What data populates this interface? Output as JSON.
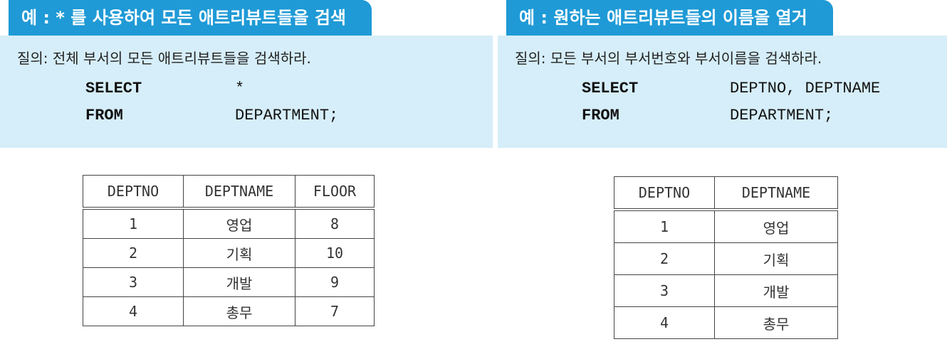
{
  "left": {
    "title": "예 : * 를 사용하여 모든 애트리뷰트들을 검색",
    "question": "질의: 전체 부서의 모든 애트리뷰트들을 검색하라.",
    "sql": [
      {
        "keyword": "SELECT",
        "expr": "*"
      },
      {
        "keyword": "FROM",
        "expr": "DEPARTMENT;"
      }
    ],
    "table": {
      "headers": [
        "DEPTNO",
        "DEPTNAME",
        "FLOOR"
      ],
      "rows": [
        [
          "1",
          "영업",
          "8"
        ],
        [
          "2",
          "기획",
          "10"
        ],
        [
          "3",
          "개발",
          "9"
        ],
        [
          "4",
          "총무",
          "7"
        ]
      ]
    }
  },
  "right": {
    "title": "예 : 원하는 애트리뷰트들의 이름을 열거",
    "question": "질의: 모든 부서의 부서번호와 부서이름을 검색하라.",
    "sql": [
      {
        "keyword": "SELECT",
        "expr": "DEPTNO, DEPTNAME"
      },
      {
        "keyword": "FROM",
        "expr": "DEPARTMENT;"
      }
    ],
    "table": {
      "headers": [
        "DEPTNO",
        "DEPTNAME"
      ],
      "rows": [
        [
          "1",
          "영업"
        ],
        [
          "2",
          "기획"
        ],
        [
          "3",
          "개발"
        ],
        [
          "4",
          "총무"
        ]
      ]
    }
  },
  "colors": {
    "title_bg": "#1f9ad6",
    "panel_bg": "#d6eef9"
  }
}
